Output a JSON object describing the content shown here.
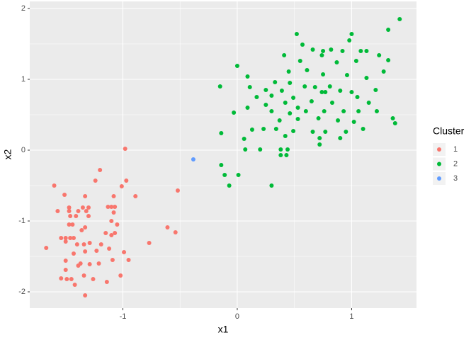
{
  "chart_data": {
    "type": "scatter",
    "x_label": "x1",
    "y_label": "x2",
    "xlim": [
      -1.814,
      1.567
    ],
    "ylim": [
      -2.23,
      2.1
    ],
    "xticks": [
      -1,
      0,
      1
    ],
    "yticks": [
      -2,
      -1,
      0,
      1,
      2
    ],
    "grid": true,
    "legend_title": "Cluster",
    "legend_position": "right",
    "series": [
      {
        "name": "1",
        "color": "#F8766D",
        "x": [
          -0.98,
          -1.6,
          -1.2,
          -1.51,
          -1.33,
          -0.97,
          -1.01,
          -1.08,
          -0.52,
          -1.24,
          -1.57,
          -1.47,
          -1.35,
          -1.3,
          -1.13,
          -1.1,
          -1.07,
          -0.89,
          -1.47,
          -1.39,
          -1.32,
          -1.46,
          -1.41,
          -1.3,
          -1.47,
          -1.44,
          -1.08,
          -1.1,
          -1.05,
          -0.61,
          -0.54,
          -1.54,
          -1.5,
          -1.46,
          -1.43,
          -1.36,
          -1.33,
          -1.15,
          -1.1,
          -1.07,
          -0.77,
          -1.67,
          -1.5,
          -1.4,
          -1.34,
          -1.29,
          -1.19,
          -1.12,
          -1.43,
          -1.33,
          -1.23,
          -0.99,
          -0.95,
          -1.5,
          -1.37,
          -1.29,
          -1.21,
          -1.09,
          -1.5,
          -1.39,
          -1.54,
          -1.49,
          -1.45,
          -1.34,
          -1.26,
          -1.14,
          -1.02,
          -1.42,
          -1.33
        ],
        "y": [
          0.02,
          -0.5,
          -0.28,
          -0.63,
          -0.65,
          -0.43,
          -0.51,
          -0.65,
          -0.57,
          -0.43,
          -0.86,
          -0.81,
          -0.81,
          -0.81,
          -0.8,
          -0.8,
          -0.8,
          -0.65,
          -0.86,
          -0.86,
          -0.86,
          -0.93,
          -0.93,
          -0.93,
          -1.05,
          -1.05,
          -0.88,
          -1.0,
          -1.05,
          -1.09,
          -1.16,
          -1.24,
          -1.24,
          -1.24,
          -1.24,
          -1.13,
          -1.09,
          -1.17,
          -1.2,
          -1.17,
          -1.31,
          -1.38,
          -1.29,
          -1.33,
          -1.33,
          -1.31,
          -1.33,
          -1.39,
          -1.46,
          -1.43,
          -1.42,
          -1.44,
          -1.55,
          -1.56,
          -1.6,
          -1.61,
          -1.6,
          -1.55,
          -1.69,
          -1.63,
          -1.81,
          -1.82,
          -1.82,
          -1.77,
          -1.82,
          -1.86,
          -1.77,
          -1.9,
          -2.05
        ]
      },
      {
        "name": "2",
        "color": "#00BA38",
        "x": [
          1.42,
          1.0,
          1.32,
          0.52,
          0.98,
          0.57,
          0.66,
          0.75,
          0.82,
          0.92,
          1.08,
          1.13,
          0.41,
          0.74,
          1.24,
          1.32,
          0.0,
          0.55,
          1.04,
          0.87,
          0.61,
          0.45,
          1.28,
          0.09,
          0.33,
          0.46,
          0.75,
          0.96,
          1.13,
          -0.15,
          0.11,
          0.25,
          0.39,
          0.59,
          0.68,
          0.81,
          0.9,
          1.21,
          0.17,
          0.3,
          0.49,
          0.74,
          0.77,
          1.0,
          1.05,
          0.09,
          0.25,
          0.42,
          0.53,
          0.65,
          0.83,
          1.15,
          0.3,
          0.46,
          0.6,
          0.76,
          0.93,
          1.06,
          1.22,
          -0.03,
          0.37,
          0.53,
          0.71,
          0.88,
          1.02,
          1.36,
          1.38,
          0.23,
          0.34,
          0.49,
          0.66,
          0.77,
          0.95,
          1.1,
          -0.14,
          0.13,
          0.42,
          0.72,
          0.9,
          0.06,
          0.72,
          0.38,
          0.44,
          0.2,
          0.07,
          0.38,
          0.43,
          -0.14,
          -0.11,
          0.01,
          -0.07,
          0.3
        ],
        "y": [
          1.85,
          1.64,
          1.7,
          1.64,
          1.55,
          1.49,
          1.42,
          1.4,
          1.42,
          1.4,
          1.4,
          1.4,
          1.34,
          1.34,
          1.34,
          1.27,
          1.19,
          1.26,
          1.26,
          1.24,
          1.13,
          1.11,
          1.11,
          1.04,
          0.96,
          0.95,
          1.07,
          1.06,
          1.02,
          0.9,
          0.89,
          0.85,
          0.84,
          0.9,
          0.89,
          0.9,
          0.84,
          0.85,
          0.75,
          0.77,
          0.74,
          0.82,
          0.82,
          0.82,
          0.75,
          0.6,
          0.64,
          0.67,
          0.6,
          0.69,
          0.67,
          0.67,
          0.55,
          0.52,
          0.55,
          0.55,
          0.55,
          0.55,
          0.55,
          0.53,
          0.42,
          0.44,
          0.45,
          0.42,
          0.4,
          0.45,
          0.38,
          0.3,
          0.3,
          0.27,
          0.26,
          0.26,
          0.26,
          0.3,
          0.24,
          0.29,
          0.2,
          0.17,
          0.17,
          0.16,
          0.08,
          0.01,
          0.01,
          0.01,
          0.01,
          -0.07,
          -0.07,
          -0.21,
          -0.35,
          -0.35,
          -0.5,
          -0.5
        ]
      },
      {
        "name": "3",
        "color": "#619CFF",
        "x": [
          -0.384
        ],
        "y": [
          -0.13
        ]
      }
    ]
  }
}
